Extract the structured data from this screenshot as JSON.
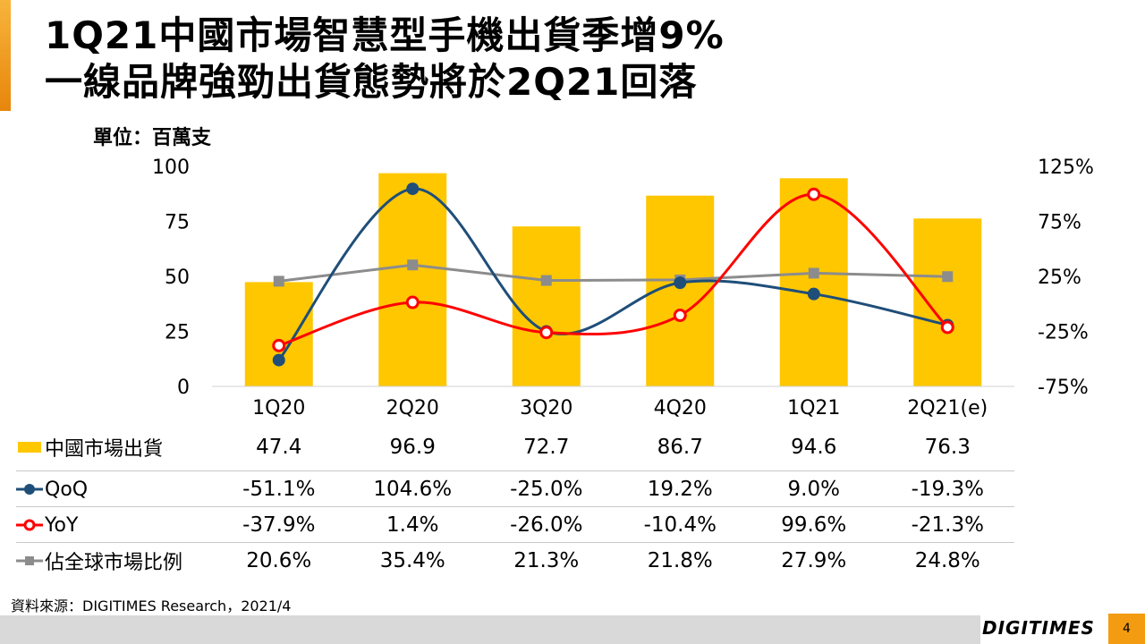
{
  "title": {
    "line1": "1Q21中國市場智慧型手機出貨季增9%",
    "line2": "一線品牌強勁出貨態勢將於2Q21回落"
  },
  "unit_label": "單位：百萬支",
  "source": "資料來源：DIGITIMES Research，2021/4",
  "brand": "DIGITIMES",
  "page_number": "4",
  "colors": {
    "bar": "#ffc700",
    "qoq": "#1f4e79",
    "yoy": "#ff0000",
    "share": "#8c8c8c",
    "accent": "#f39c12"
  },
  "chart_data": {
    "type": "bar",
    "categories": [
      "1Q20",
      "2Q20",
      "3Q20",
      "4Q20",
      "1Q21",
      "2Q21(e)"
    ],
    "left_axis": {
      "min": 0,
      "max": 100,
      "ticks": [
        "0",
        "25",
        "50",
        "75",
        "100"
      ]
    },
    "right_axis": {
      "min": -75,
      "max": 125,
      "ticks": [
        "-75%",
        "-25%",
        "25%",
        "75%",
        "125%"
      ]
    },
    "series": [
      {
        "name": "中國市場出貨",
        "type": "bar",
        "axis": "left",
        "values": [
          47.4,
          96.9,
          72.7,
          86.7,
          94.6,
          76.3
        ],
        "labels": [
          "47.4",
          "96.9",
          "72.7",
          "86.7",
          "94.6",
          "76.3"
        ]
      },
      {
        "name": "QoQ",
        "type": "line",
        "axis": "right",
        "marker": "circle-filled",
        "values": [
          -51.1,
          104.6,
          -25.0,
          19.2,
          9.0,
          -19.3
        ],
        "labels": [
          "-51.1%",
          "104.6%",
          "-25.0%",
          "19.2%",
          "9.0%",
          "-19.3%"
        ]
      },
      {
        "name": "YoY",
        "type": "line",
        "axis": "right",
        "marker": "circle-open",
        "values": [
          -37.9,
          1.4,
          -26.0,
          -10.4,
          99.6,
          -21.3
        ],
        "labels": [
          "-37.9%",
          "1.4%",
          "-26.0%",
          "-10.4%",
          "99.6%",
          "-21.3%"
        ]
      },
      {
        "name": "佔全球市場比例",
        "type": "line",
        "axis": "right",
        "marker": "square",
        "values": [
          20.6,
          35.4,
          21.3,
          21.8,
          27.9,
          24.8
        ],
        "labels": [
          "20.6%",
          "35.4%",
          "21.3%",
          "21.8%",
          "27.9%",
          "24.8%"
        ]
      }
    ]
  }
}
